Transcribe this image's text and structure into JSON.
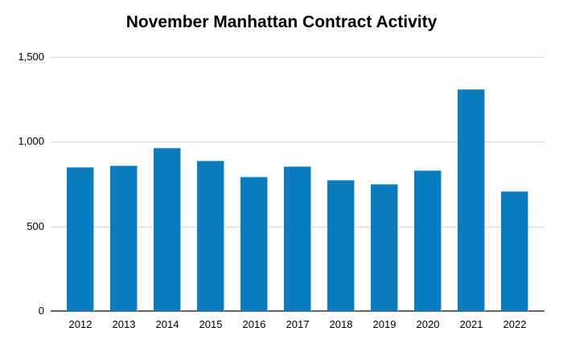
{
  "chart": {
    "title": "November Manhattan Contract Activity"
  },
  "chart_data": {
    "type": "bar",
    "title": "November Manhattan Contract Activity",
    "categories": [
      "2012",
      "2013",
      "2014",
      "2015",
      "2016",
      "2017",
      "2018",
      "2019",
      "2020",
      "2021",
      "2022"
    ],
    "values": [
      850,
      860,
      965,
      890,
      795,
      855,
      775,
      750,
      830,
      1310,
      705
    ],
    "xlabel": "",
    "ylabel": "",
    "ylim": [
      0,
      1500
    ],
    "yticks": [
      0,
      500,
      1000,
      1500
    ],
    "ytick_labels": [
      "0",
      "500",
      "1,000",
      "1,500"
    ],
    "grid": true,
    "legend": "none",
    "style": {
      "bar_color": "#0b7dbf",
      "bar_edge_color": "#8ec6e8",
      "gridline_color": "#d9d9d9",
      "axis_color": "#656565",
      "background_color": "#ffffff",
      "title_color": "#000000",
      "label_color": "#000000"
    }
  }
}
